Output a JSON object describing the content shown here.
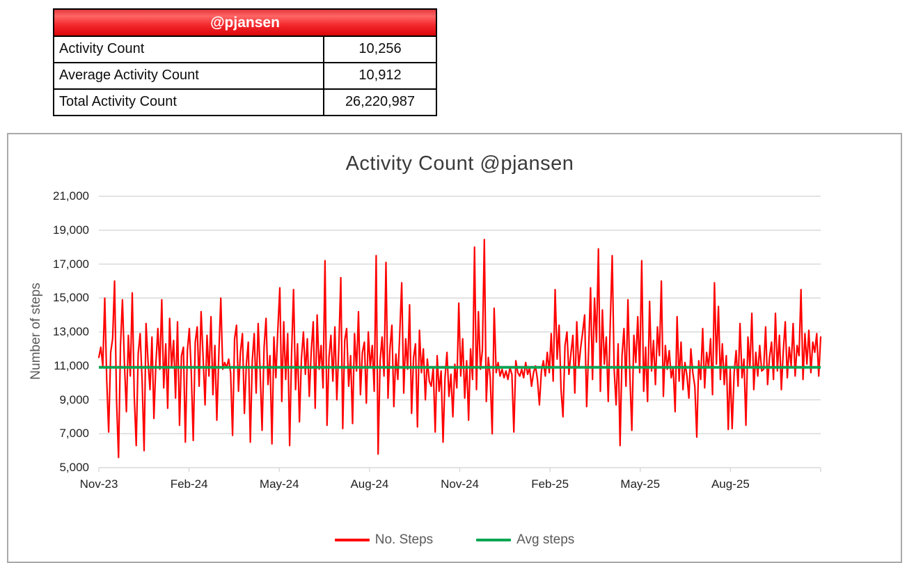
{
  "table": {
    "title": "@pjansen",
    "rows": [
      {
        "label": "Activity Count",
        "value": "10,256"
      },
      {
        "label": "Average Activity Count",
        "value": "10,912"
      },
      {
        "label": "Total Activity Count",
        "value": "26,220,987"
      }
    ],
    "colors": {
      "header_gradient_top": "#e23a3e",
      "header_gradient_light": "#ff6565",
      "header_gradient_mid": "#f3282c",
      "header_gradient_bottom": "#dc060b",
      "header_text": "#ffffff",
      "border": "#000000"
    }
  },
  "chart_data": {
    "type": "line",
    "title": "Activity Count @pjansen",
    "ylabel": "Number of steps",
    "ylim": [
      5000,
      21000
    ],
    "ytick_interval": 2000,
    "ytick_labels": [
      "21,000",
      "19,000",
      "17,000",
      "15,000",
      "13,000",
      "11,000",
      "9,000",
      "7,000",
      "5,000"
    ],
    "xtick_labels": [
      "Nov-23",
      "Feb-24",
      "May-24",
      "Aug-24",
      "Nov-24",
      "Feb-25",
      "May-25",
      "Aug-25"
    ],
    "x_total_intervals": 8,
    "grid": true,
    "legend_position": "bottom",
    "colors": {
      "grid": "#d9d9d9",
      "frame_border": "#a9a9a9",
      "axis_text": "#1f1f1f",
      "muted_text": "#595959"
    },
    "series": [
      {
        "name": "No. Steps",
        "color": "#ff0000",
        "values": [
          11500,
          12100,
          11000,
          15000,
          10200,
          7100,
          11800,
          12600,
          16000,
          9000,
          5600,
          12200,
          14900,
          11200,
          8300,
          12800,
          10400,
          15300,
          9200,
          6300,
          11700,
          12900,
          10100,
          6000,
          13500,
          11300,
          9600,
          12700,
          7900,
          11100,
          13200,
          10800,
          14900,
          9700,
          12300,
          8500,
          13800,
          10900,
          12500,
          9100,
          13600,
          7500,
          11600,
          12100,
          6500,
          11900,
          13200,
          10600,
          6600,
          12400,
          13300,
          9800,
          14200,
          11500,
          8700,
          12800,
          10400,
          13900,
          9300,
          12200,
          7800,
          11700,
          15000,
          10800,
          11200,
          10900,
          11400,
          10600,
          6900,
          12600,
          13400,
          9500,
          11800,
          12900,
          8200,
          11100,
          12400,
          6500,
          11300,
          12900,
          9400,
          13500,
          10700,
          7200,
          12100,
          13800,
          9900,
          11600,
          6400,
          12700,
          10300,
          13100,
          15600,
          8900,
          13600,
          10200,
          12900,
          6300,
          11700,
          15500,
          9600,
          12300,
          7700,
          11400,
          13000,
          10500,
          12600,
          9200,
          11900,
          13600,
          8500,
          14000,
          10800,
          12200,
          9700,
          17200,
          7500,
          11500,
          12800,
          10100,
          13300,
          9000,
          12000,
          16200,
          7300,
          12500,
          13200,
          9800,
          11600,
          7600,
          12900,
          10700,
          14200,
          9300,
          11800,
          12400,
          8800,
          13000,
          10900,
          12200,
          9500,
          17500,
          5800,
          11300,
          12700,
          10400,
          17100,
          9100,
          12000,
          13400,
          8600,
          11700,
          10200,
          12900,
          15900,
          9400,
          12600,
          10800,
          14600,
          8200,
          11500,
          12300,
          7400,
          13100,
          10600,
          12000,
          9000,
          11400,
          10100,
          9800,
          10900,
          7100,
          11600,
          9500,
          10700,
          6500,
          10300,
          11800,
          9200,
          10500,
          8000,
          11100,
          9700,
          14700,
          10400,
          12600,
          9100,
          11300,
          7800,
          12000,
          10200,
          18000,
          9600,
          14200,
          10800,
          11900,
          18450,
          8900,
          11500,
          10300,
          7000,
          14400,
          10600,
          11200,
          10400,
          10800,
          10300,
          10700,
          10200,
          10900,
          10500,
          7100,
          11300,
          10600,
          10400,
          10800,
          10300,
          11200,
          10500,
          10900,
          9800,
          10600,
          11000,
          10200,
          8700,
          10700,
          11300,
          10400,
          11800,
          10600,
          12900,
          10100,
          15500,
          11400,
          13400,
          9600,
          8000,
          12200,
          13000,
          10500,
          11700,
          12800,
          9400,
          13600,
          10900,
          12100,
          13000,
          14000,
          8600,
          11900,
          15600,
          10200,
          15000,
          12400,
          17900,
          9500,
          14300,
          11100,
          12700,
          8900,
          13500,
          17500,
          10800,
          8700,
          12300,
          6300,
          11600,
          13200,
          9800,
          14900,
          10400,
          7200,
          12800,
          11200,
          13900,
          10600,
          17200,
          9500,
          12100,
          8900,
          14800,
          10700,
          12500,
          9900,
          13300,
          11600,
          16000,
          9200,
          12200,
          10800,
          11900,
          10300,
          10900,
          8300,
          13900,
          10100,
          12400,
          9600,
          11200,
          10400,
          9100,
          12000,
          10600,
          9800,
          6800,
          11300,
          10200,
          13200,
          9700,
          11800,
          10900,
          12600,
          9300,
          15900,
          11100,
          14500,
          10200,
          12300,
          9900,
          11600,
          7250,
          10800,
          7300,
          10600,
          11900,
          9800,
          13500,
          10300,
          11400,
          7500,
          12700,
          10900,
          14100,
          9600,
          11800,
          10400,
          12200,
          10700,
          10800,
          13300,
          9900,
          11500,
          12400,
          10200,
          14100,
          10700,
          12800,
          9600,
          11900,
          13600,
          10300,
          12100,
          11000,
          13500,
          10400,
          12200,
          11600,
          15500,
          10200,
          12900,
          11100,
          13100,
          10600,
          12400,
          11800,
          12900,
          10400,
          12700
        ]
      },
      {
        "name": "Avg steps",
        "color": "#00a651",
        "value": 10912
      }
    ]
  }
}
